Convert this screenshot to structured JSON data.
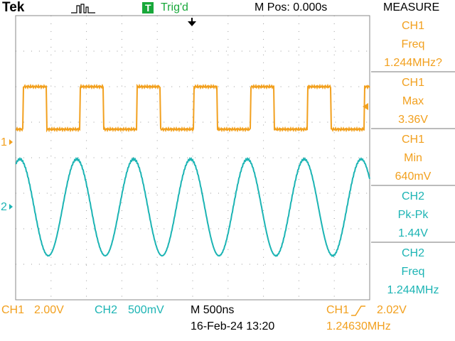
{
  "header": {
    "brand": "Tek",
    "trigger_badge": "T",
    "trigger_status": "Trig'd",
    "position": "M Pos: 0.000s",
    "menu_title": "MEASURE"
  },
  "channel_colors": {
    "CH1": "#f2a01e",
    "CH2": "#1cb4b4"
  },
  "measurements": [
    {
      "source": "CH1",
      "label": "Freq",
      "value": "1.244MHz?"
    },
    {
      "source": "CH1",
      "label": "Max",
      "value": "3.36V"
    },
    {
      "source": "CH1",
      "label": "Min",
      "value": "640mV"
    },
    {
      "source": "CH2",
      "label": "Pk-Pk",
      "value": "1.44V"
    },
    {
      "source": "CH2",
      "label": "Freq",
      "value": "1.244MHz"
    }
  ],
  "markers": {
    "ch1": "1",
    "ch2": "2"
  },
  "footer": {
    "ch1_name": "CH1",
    "ch1_scale": "2.00V",
    "ch2_name": "CH2",
    "ch2_scale": "500mV",
    "timebase": "M 500ns",
    "timestamp": "16-Feb-24 13:20",
    "trigger_source": "CH1",
    "trigger_level": "2.02V",
    "trigger_freq": "1.24630MHz"
  }
}
